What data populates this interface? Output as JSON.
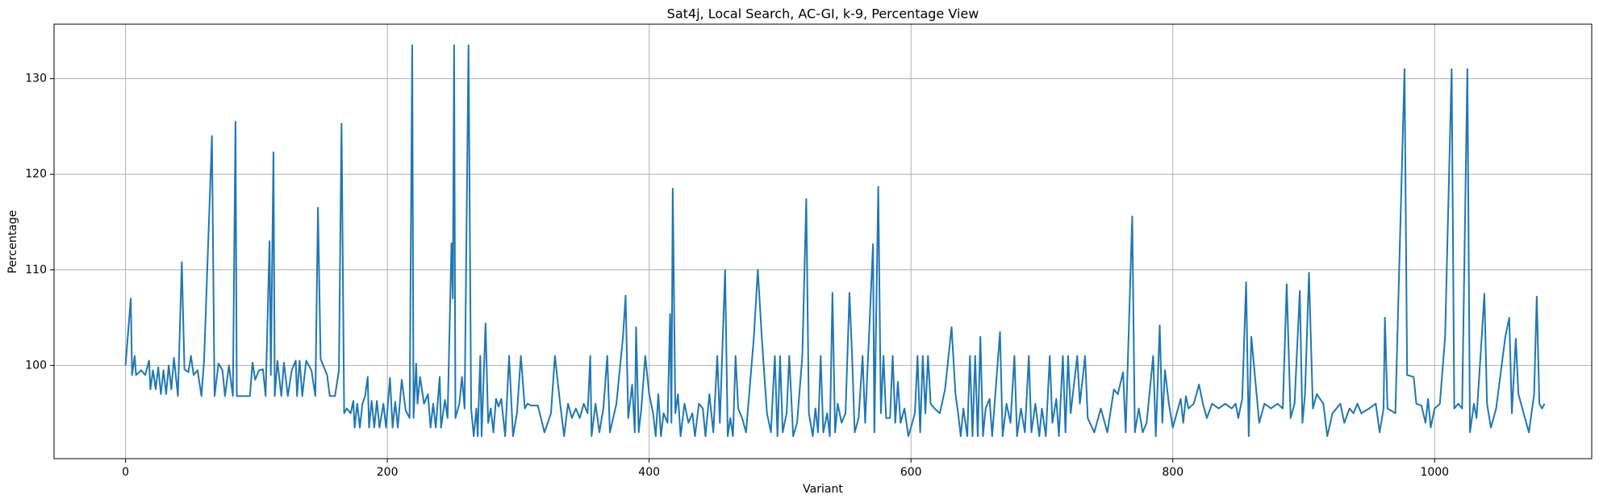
{
  "chart_data": {
    "type": "line",
    "title": "Sat4j, Local Search, AC-GI, k-9, Percentage View",
    "x_label": "Variant",
    "y_label": "Percentage",
    "xlim": [
      -54.6,
      1120
    ],
    "ylim": [
      90.25,
      135.7
    ],
    "xticks": [
      0,
      200,
      400,
      600,
      800,
      1000
    ],
    "yticks": [
      100,
      110,
      120,
      130
    ],
    "grid": true,
    "color": "#1f77b4",
    "x": [
      0,
      4,
      5,
      7,
      8,
      12,
      15,
      18,
      19,
      21,
      23,
      25,
      27,
      29,
      31,
      33,
      35,
      37,
      40,
      43,
      45,
      48,
      50,
      52,
      55,
      58,
      60,
      66,
      68,
      71,
      74,
      76,
      79,
      82,
      84,
      85,
      95,
      97,
      99,
      102,
      105,
      107,
      110,
      111,
      113,
      114,
      116,
      119,
      121,
      124,
      127,
      130,
      131,
      133,
      135,
      138,
      142,
      145,
      147,
      149,
      154,
      156,
      160,
      163,
      165,
      167,
      169,
      172,
      174,
      175,
      177,
      179,
      181,
      183,
      185,
      186,
      188,
      190,
      192,
      194,
      197,
      199,
      202,
      204,
      206,
      208,
      211,
      214,
      217,
      219,
      220,
      222,
      223,
      225,
      228,
      231,
      233,
      235,
      237,
      240,
      241,
      244,
      246,
      249,
      250,
      251,
      252,
      255,
      257,
      259,
      262,
      264,
      266,
      268,
      269,
      271,
      272,
      275,
      277,
      279,
      281,
      283,
      285,
      287,
      290,
      293,
      296,
      299,
      302,
      305,
      307,
      310,
      315,
      320,
      325,
      328,
      332,
      335,
      338,
      341,
      344,
      347,
      350,
      353,
      355,
      356,
      359,
      362,
      365,
      368,
      370,
      375,
      380,
      382,
      384,
      387,
      389,
      390,
      392,
      394,
      397,
      400,
      403,
      405,
      407,
      409,
      411,
      414,
      416,
      417,
      418,
      420,
      422,
      424,
      427,
      430,
      433,
      435,
      438,
      441,
      443,
      446,
      449,
      452,
      454,
      458,
      460,
      462,
      464,
      466,
      468,
      471,
      474,
      480,
      483,
      486,
      490,
      493,
      496,
      498,
      500,
      502,
      505,
      507,
      510,
      513,
      517,
      520,
      522,
      525,
      527,
      529,
      531,
      533,
      536,
      538,
      540,
      542,
      544,
      547,
      550,
      553,
      555,
      557,
      560,
      563,
      565,
      571,
      572,
      575,
      577,
      579,
      581,
      584,
      586,
      588,
      590,
      592,
      595,
      598,
      601,
      603,
      605,
      607,
      609,
      611,
      613,
      615,
      618,
      622,
      626,
      631,
      634,
      636,
      638,
      640,
      643,
      645,
      647,
      649,
      651,
      653,
      655,
      657,
      660,
      662,
      668,
      670,
      673,
      676,
      679,
      681,
      684,
      687,
      690,
      692,
      695,
      698,
      700,
      703,
      706,
      708,
      711,
      713,
      716,
      718,
      720,
      722,
      727,
      729,
      733,
      735,
      740,
      745,
      750,
      755,
      758,
      762,
      764,
      769,
      771,
      774,
      777,
      780,
      785,
      787,
      790,
      792,
      794,
      797,
      800,
      803,
      806,
      808,
      810,
      812,
      816,
      820,
      823,
      826,
      830,
      835,
      840,
      845,
      848,
      850,
      853,
      856,
      858,
      860,
      866,
      870,
      875,
      880,
      884,
      887,
      890,
      893,
      897,
      899,
      901,
      904,
      907,
      910,
      915,
      918,
      922,
      928,
      931,
      935,
      938,
      941,
      944,
      950,
      955,
      958,
      961,
      962,
      964,
      970,
      977,
      979,
      984,
      986,
      990,
      993,
      995,
      997,
      1000,
      1004,
      1008,
      1013,
      1015,
      1018,
      1021,
      1025,
      1027,
      1030,
      1032,
      1036,
      1038,
      1040,
      1043,
      1047,
      1054,
      1057,
      1059,
      1062,
      1064,
      1072,
      1076,
      1078,
      1080,
      1082,
      1084
    ],
    "values": [
      100,
      107,
      99,
      101,
      99,
      99.5,
      99,
      100.5,
      97.5,
      99.5,
      97.5,
      99.8,
      97,
      99.5,
      97,
      100,
      97.5,
      100.8,
      96.8,
      110.8,
      99.6,
      99.3,
      101,
      99,
      99.5,
      96.8,
      100.5,
      124,
      96.8,
      100.2,
      99.5,
      96.8,
      100,
      96.8,
      125.5,
      96.8,
      96.8,
      100.3,
      98.5,
      99.5,
      99.6,
      96.8,
      113,
      99,
      122.3,
      96.8,
      100.5,
      96.8,
      100.3,
      96.8,
      99.5,
      100.5,
      96.8,
      100.5,
      96.8,
      100.5,
      99.5,
      96.8,
      116.5,
      100.7,
      99,
      96.8,
      96.8,
      99.5,
      125.3,
      95,
      95.5,
      95,
      96.3,
      93.5,
      96,
      93.5,
      96,
      96.8,
      98.8,
      93.5,
      96.3,
      93.5,
      96.3,
      93.5,
      96,
      93.5,
      98.7,
      93.5,
      96.2,
      93.5,
      98.5,
      95.3,
      94.5,
      133.5,
      94.5,
      100.2,
      96,
      98.8,
      96,
      97,
      93.5,
      96,
      93.5,
      98.8,
      93.5,
      96.4,
      94.5,
      112.8,
      107,
      133.5,
      94.5,
      96,
      98.8,
      95.5,
      133.5,
      95.5,
      92.6,
      95.5,
      92.6,
      101,
      92.6,
      104.4,
      94,
      95.5,
      93,
      96.5,
      95.7,
      96.5,
      92.6,
      101,
      92.6,
      95,
      101,
      95.5,
      96,
      95.8,
      95.8,
      93,
      95,
      101,
      96,
      92.6,
      96,
      94.5,
      95.5,
      94.5,
      96,
      95,
      101,
      92.6,
      96,
      93,
      95.5,
      101,
      93,
      96,
      103,
      107.3,
      94.5,
      98,
      93,
      104,
      93,
      95.5,
      101,
      97,
      95,
      92.6,
      97,
      92.6,
      95,
      94,
      105.4,
      94,
      118.5,
      95,
      97,
      92.6,
      96,
      94,
      95,
      92.6,
      96,
      95.5,
      92.6,
      97,
      93,
      101,
      94,
      110,
      92.6,
      94.5,
      92.6,
      101,
      95.5,
      94.5,
      93,
      103,
      110,
      103,
      95,
      93,
      101,
      92.6,
      101,
      93,
      95,
      101,
      92.6,
      94,
      101,
      117.4,
      95,
      92.6,
      95.5,
      93,
      101,
      93,
      95,
      92.6,
      107.6,
      93,
      96,
      94,
      95,
      107.6,
      101,
      93,
      94.5,
      101,
      94,
      112.7,
      93,
      118.7,
      95,
      101,
      94.5,
      94.5,
      101,
      94,
      98.3,
      94,
      95.5,
      92.6,
      94,
      95,
      101,
      93,
      101,
      95,
      101,
      96,
      95.5,
      95,
      97.5,
      104,
      97,
      95,
      92.6,
      95.5,
      92.6,
      101,
      92.6,
      101,
      92.6,
      103,
      92.6,
      95.5,
      96.5,
      92.6,
      103.5,
      92.6,
      96,
      94,
      101,
      92.6,
      95.5,
      93,
      101,
      93,
      96,
      92.6,
      95.5,
      92.6,
      101,
      94,
      96.5,
      92.6,
      101,
      93,
      101,
      95,
      101,
      96,
      101,
      94.5,
      93,
      95.5,
      93,
      97.5,
      97,
      99.3,
      93,
      115.6,
      93,
      95.5,
      93,
      94,
      101,
      92.6,
      104.2,
      94,
      99.5,
      96,
      93.5,
      95,
      96.5,
      94,
      96.8,
      95.5,
      96,
      98,
      96,
      94.5,
      96,
      95.5,
      96,
      95.5,
      96,
      94.5,
      96.5,
      108.7,
      92.6,
      103,
      94,
      96,
      95.5,
      96,
      95.5,
      108.5,
      94.5,
      96,
      107.8,
      94,
      97,
      109.7,
      95.5,
      97,
      96,
      92.6,
      95,
      96,
      94,
      95.5,
      95,
      96,
      95,
      95.5,
      96,
      93,
      95.5,
      105,
      95.5,
      95,
      131,
      99,
      98.8,
      96,
      95.8,
      94,
      96.5,
      93.5,
      95.5,
      96,
      103,
      131,
      95.5,
      96,
      95.5,
      131,
      93,
      96,
      94.5,
      103,
      107.5,
      96,
      93.5,
      95.5,
      103,
      105,
      95,
      102.8,
      97,
      93,
      97,
      107.2,
      96,
      95.5,
      96
    ]
  }
}
